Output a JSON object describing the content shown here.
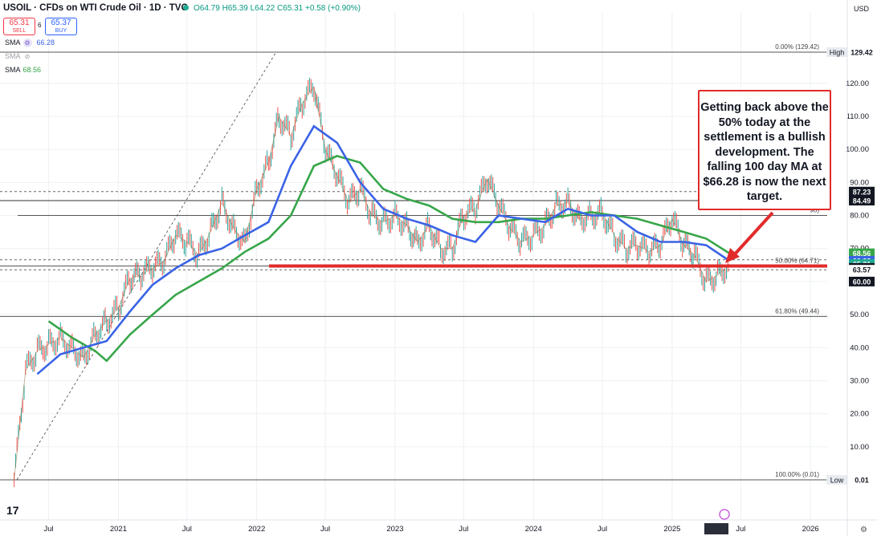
{
  "header": {
    "title": "USOIL · CFDs on WTI Crude Oil · 1D · TVC",
    "ohlc": "O64.79 H65.39 L64.22 C65.31 +0.58 (+0.90%)",
    "sell_price": "65.31",
    "sell_label": "SELL",
    "spread": "6",
    "buy_price": "65.37",
    "buy_label": "BUY",
    "currency": "USD"
  },
  "indicators": [
    {
      "label": "SMA",
      "value": "66.28",
      "color": "#3a63e6"
    },
    {
      "label": "SMA",
      "value": "",
      "color": "#9aa0a6"
    },
    {
      "label": "SMA",
      "value": "68.56",
      "color": "#37a649"
    }
  ],
  "callout": {
    "text": "Getting back above the 50% today at the settlement is a bullish development. The falling 100 day MA at $66.28 is now the next target."
  },
  "chart_data": {
    "type": "line",
    "title": "USOIL · CFDs on WTI Crude Oil · 1D · TVC",
    "ylim": [
      0,
      135
    ],
    "y_ticks": [
      10,
      20,
      30,
      40,
      50,
      60,
      70,
      80,
      90,
      100,
      110,
      120
    ],
    "x_tick_labels": [
      "Jul",
      "2021",
      "Jul",
      "2022",
      "Jul",
      "2023",
      "Jul",
      "2024",
      "Jul",
      "2025",
      "Jul",
      "2026"
    ],
    "x_tick_dates": [
      "2020-07",
      "2021-01",
      "2021-07",
      "2022-01",
      "2022-07",
      "2023-01",
      "2023-07",
      "2024-01",
      "2024-07",
      "2025-01",
      "2025-07",
      "2026-01"
    ],
    "grid": true,
    "series": [
      {
        "name": "USOIL",
        "color": "#26a69a",
        "x": [
          "2020-04",
          "2020-05",
          "2020-06",
          "2020-07",
          "2020-08",
          "2020-09",
          "2020-10",
          "2020-11",
          "2020-12",
          "2021-01",
          "2021-02",
          "2021-03",
          "2021-04",
          "2021-05",
          "2021-06",
          "2021-07",
          "2021-08",
          "2021-09",
          "2021-10",
          "2021-11",
          "2021-12",
          "2022-01",
          "2022-02",
          "2022-03",
          "2022-04",
          "2022-05",
          "2022-06",
          "2022-07",
          "2022-08",
          "2022-09",
          "2022-10",
          "2022-11",
          "2022-12",
          "2023-01",
          "2023-02",
          "2023-03",
          "2023-04",
          "2023-05",
          "2023-06",
          "2023-07",
          "2023-08",
          "2023-09",
          "2023-10",
          "2023-11",
          "2023-12",
          "2024-01",
          "2024-02",
          "2024-03",
          "2024-04",
          "2024-05",
          "2024-06",
          "2024-07",
          "2024-08",
          "2024-09",
          "2024-10",
          "2024-11",
          "2024-12",
          "2025-01",
          "2025-02",
          "2025-03",
          "2025-04",
          "2025-05",
          "2025-06"
        ],
        "y": [
          0.01,
          33,
          39,
          41,
          43,
          40,
          37,
          44,
          48,
          52,
          61,
          62,
          64,
          66,
          74,
          72,
          68,
          75,
          84,
          76,
          72,
          88,
          96,
          110,
          104,
          114,
          119,
          100,
          92,
          84,
          88,
          80,
          78,
          80,
          77,
          72,
          77,
          70,
          70,
          80,
          82,
          91,
          83,
          76,
          72,
          74,
          77,
          83,
          84,
          79,
          80,
          81,
          74,
          70,
          71,
          69,
          71,
          79,
          71,
          68,
          60,
          62,
          65.31
        ]
      },
      {
        "name": "SMA 100",
        "value": 66.28,
        "color": "#3a63e6",
        "x": [
          "2020-06",
          "2020-08",
          "2020-10",
          "2020-12",
          "2021-02",
          "2021-04",
          "2021-06",
          "2021-08",
          "2021-10",
          "2021-12",
          "2022-02",
          "2022-04",
          "2022-06",
          "2022-08",
          "2022-10",
          "2022-12",
          "2023-02",
          "2023-04",
          "2023-06",
          "2023-08",
          "2023-10",
          "2023-12",
          "2024-02",
          "2024-04",
          "2024-06",
          "2024-08",
          "2024-10",
          "2024-12",
          "2025-02",
          "2025-04",
          "2025-06"
        ],
        "y": [
          32,
          38,
          40,
          42,
          51,
          59,
          64,
          68,
          70,
          74,
          78,
          95,
          107,
          102,
          90,
          82,
          79,
          77,
          74,
          72,
          80,
          79,
          78,
          82,
          80,
          80,
          75,
          72,
          72,
          71,
          66.28
        ]
      },
      {
        "name": "SMA 200",
        "value": 68.56,
        "color": "#37a649",
        "x": [
          "2020-07",
          "2020-09",
          "2020-11",
          "2020-12",
          "2021-02",
          "2021-04",
          "2021-06",
          "2021-08",
          "2021-10",
          "2021-12",
          "2022-02",
          "2022-04",
          "2022-06",
          "2022-08",
          "2022-10",
          "2022-12",
          "2023-02",
          "2023-04",
          "2023-06",
          "2023-08",
          "2023-10",
          "2023-12",
          "2024-02",
          "2024-04",
          "2024-06",
          "2024-08",
          "2024-10",
          "2024-12",
          "2025-02",
          "2025-04",
          "2025-06"
        ],
        "y": [
          48,
          43,
          39,
          36,
          44,
          50,
          56,
          60,
          64,
          69,
          73,
          80,
          95,
          98,
          96,
          88,
          85,
          83,
          79,
          78,
          78,
          79,
          79,
          80,
          81,
          80,
          79,
          77,
          75,
          73,
          68.56
        ]
      }
    ],
    "levels": [
      {
        "label": "0.00% (129.42)",
        "value": 129.42
      },
      {
        "label": "50.00% (64.71)",
        "value": 64.71
      },
      {
        "label": "61.80% (49.44)",
        "value": 49.44
      },
      {
        "label": "100.00% (0.01)",
        "value": 0.01
      },
      {
        "label": "98)",
        "value": 80
      }
    ],
    "price_labels": [
      {
        "text": "129.42",
        "tag": "High",
        "value": 129.42,
        "bg": "#ffffff",
        "fg": "#131722"
      },
      {
        "text": "87.23",
        "value": 87.23,
        "bg": "#131722",
        "fg": "#ffffff"
      },
      {
        "text": "84.49",
        "value": 84.49,
        "bg": "#131722",
        "fg": "#ffffff"
      },
      {
        "text": "68.56",
        "value": 68.56,
        "bg": "#37a649",
        "fg": "#ffffff"
      },
      {
        "text": "66.28",
        "value": 66.28,
        "bg": "#3a63e6",
        "fg": "#ffffff"
      },
      {
        "text": "65.31",
        "value": 65.31,
        "bg": "#22ab94",
        "fg": "#ffffff"
      },
      {
        "text": "64.14",
        "value": 64.14,
        "bg": "#131722",
        "fg": "#ffffff"
      },
      {
        "text": "63.57",
        "value": 63.57,
        "bg": "#ffffff",
        "fg": "#131722"
      },
      {
        "text": "60.00",
        "value": 60.0,
        "bg": "#131722",
        "fg": "#ffffff"
      },
      {
        "text": "0.01",
        "tag": "Low",
        "value": 0.01,
        "bg": "#ffffff",
        "fg": "#131722"
      }
    ]
  }
}
